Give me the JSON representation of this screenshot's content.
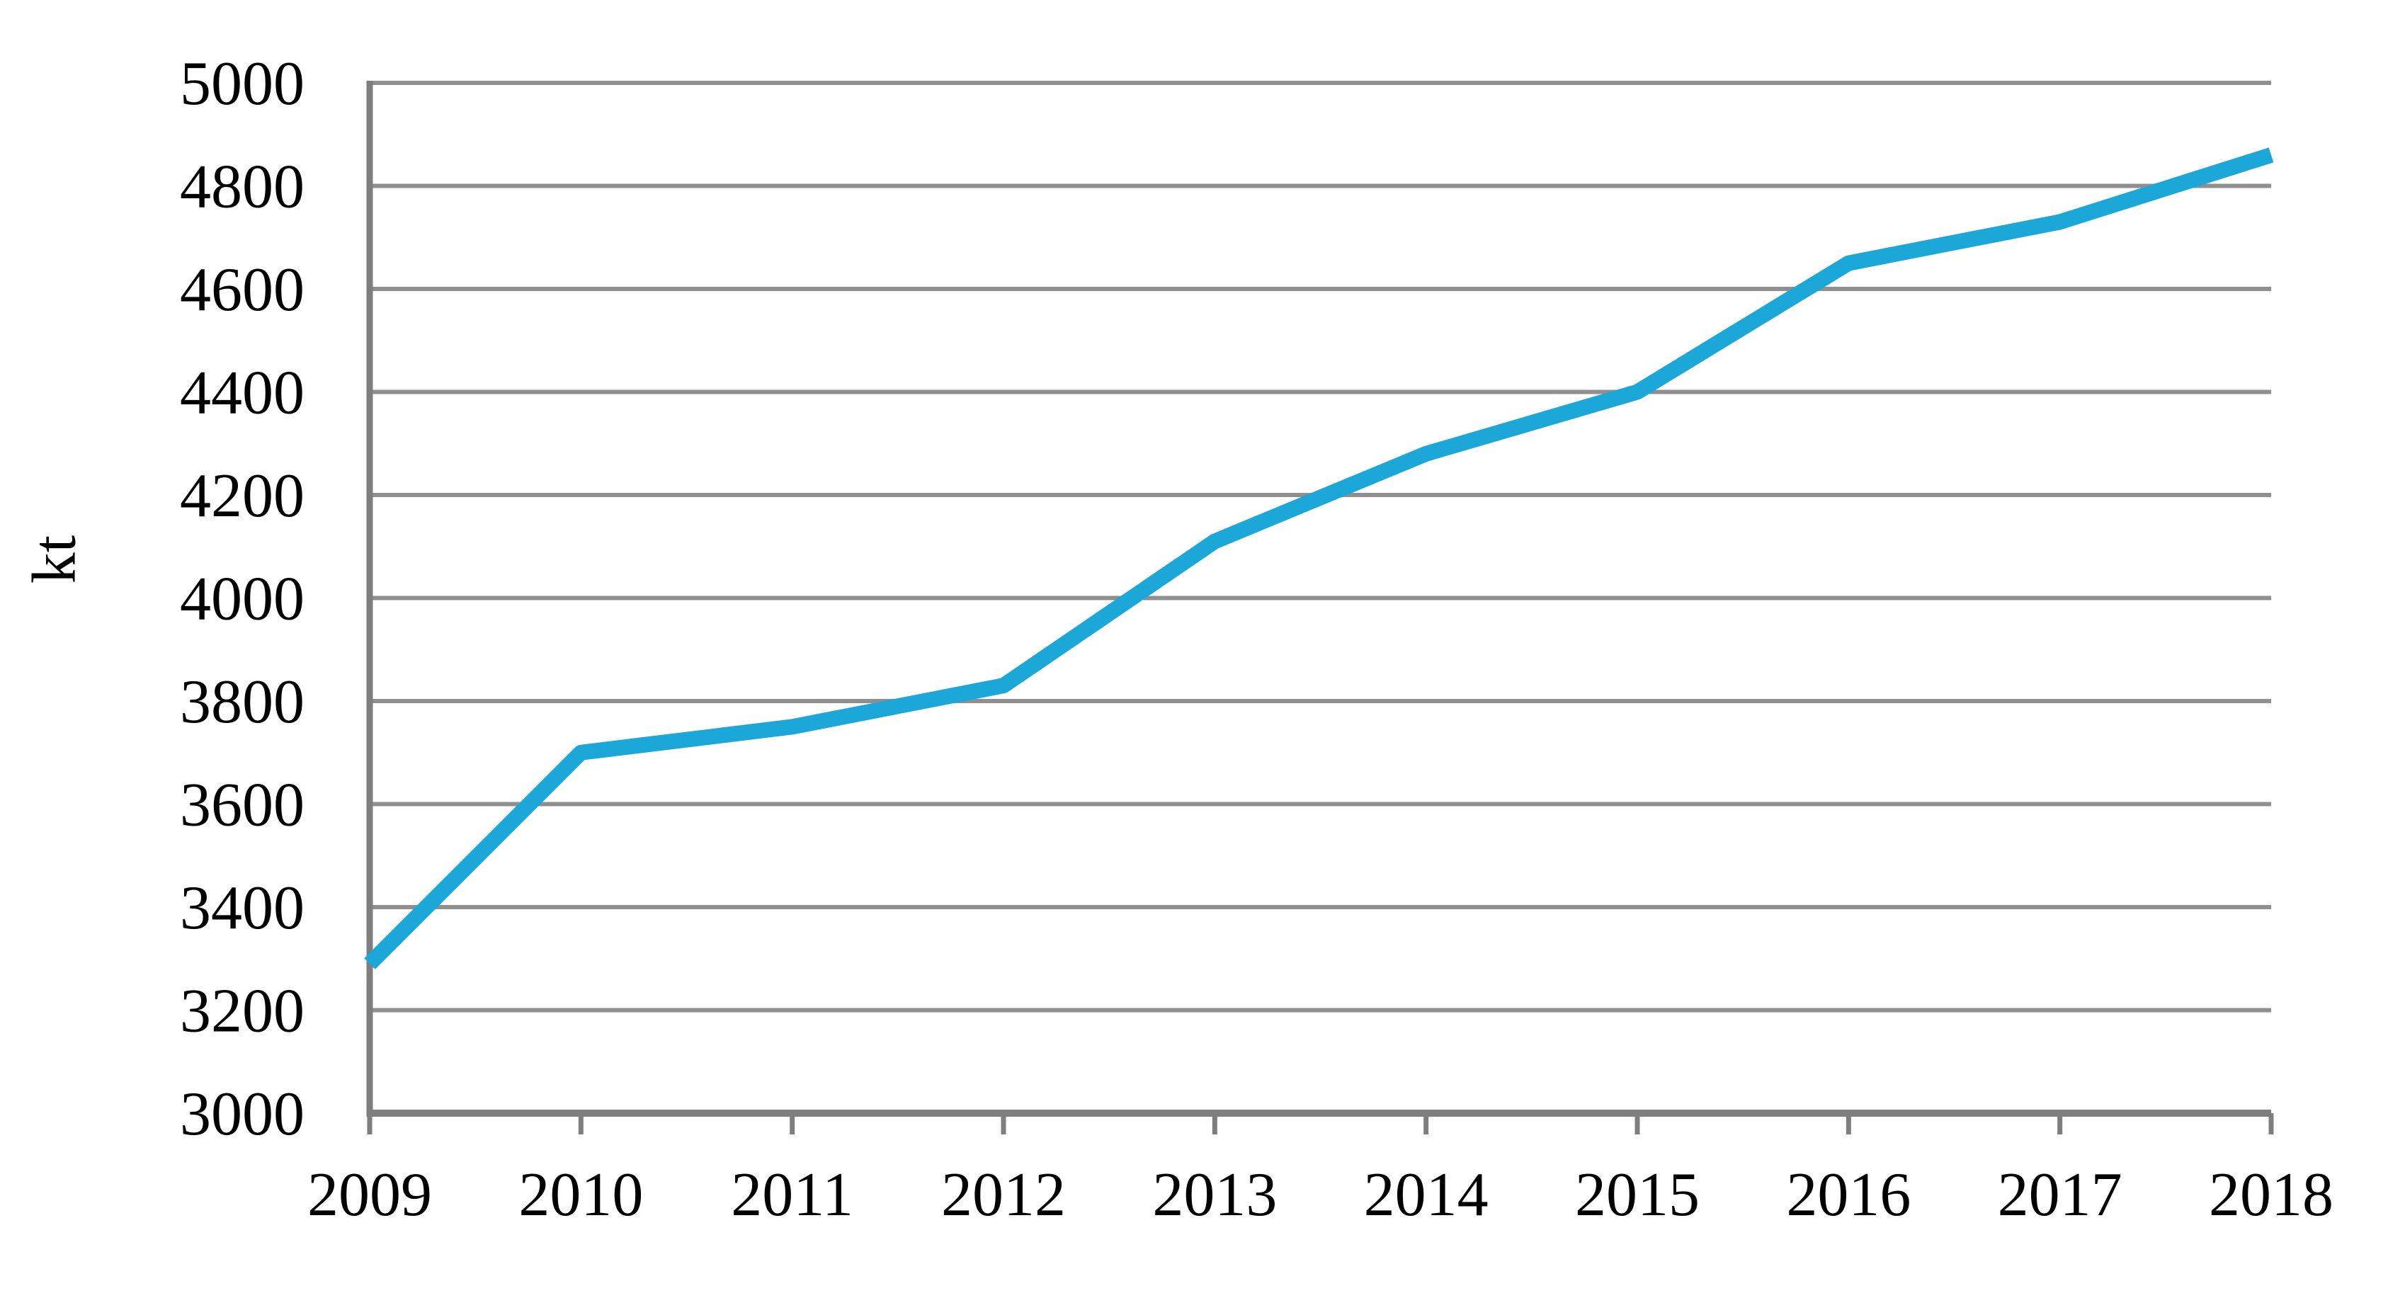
{
  "chart_data": {
    "type": "line",
    "title": "",
    "xlabel": "",
    "ylabel": "kt",
    "x": [
      "2009",
      "2010",
      "2011",
      "2012",
      "2013",
      "2014",
      "2015",
      "2016",
      "2017",
      "2018"
    ],
    "series": [
      {
        "name": "production-kt",
        "values": [
          3290,
          3700,
          3750,
          3830,
          4110,
          4280,
          4400,
          4650,
          4730,
          4860
        ]
      }
    ],
    "ylim": [
      3000,
      5000
    ],
    "ytick_step": 200,
    "y_ticks": [
      5000,
      4800,
      4600,
      4400,
      4200,
      4000,
      3800,
      3600,
      3400,
      3200,
      3000
    ],
    "grid": "horizontal",
    "legend": "none",
    "line_color": "#1BA7D8",
    "grid_color": "#8F8F8F",
    "axis_color": "#7E7E7E",
    "text_color": "#000000",
    "background_color": "#FFFFFF"
  }
}
